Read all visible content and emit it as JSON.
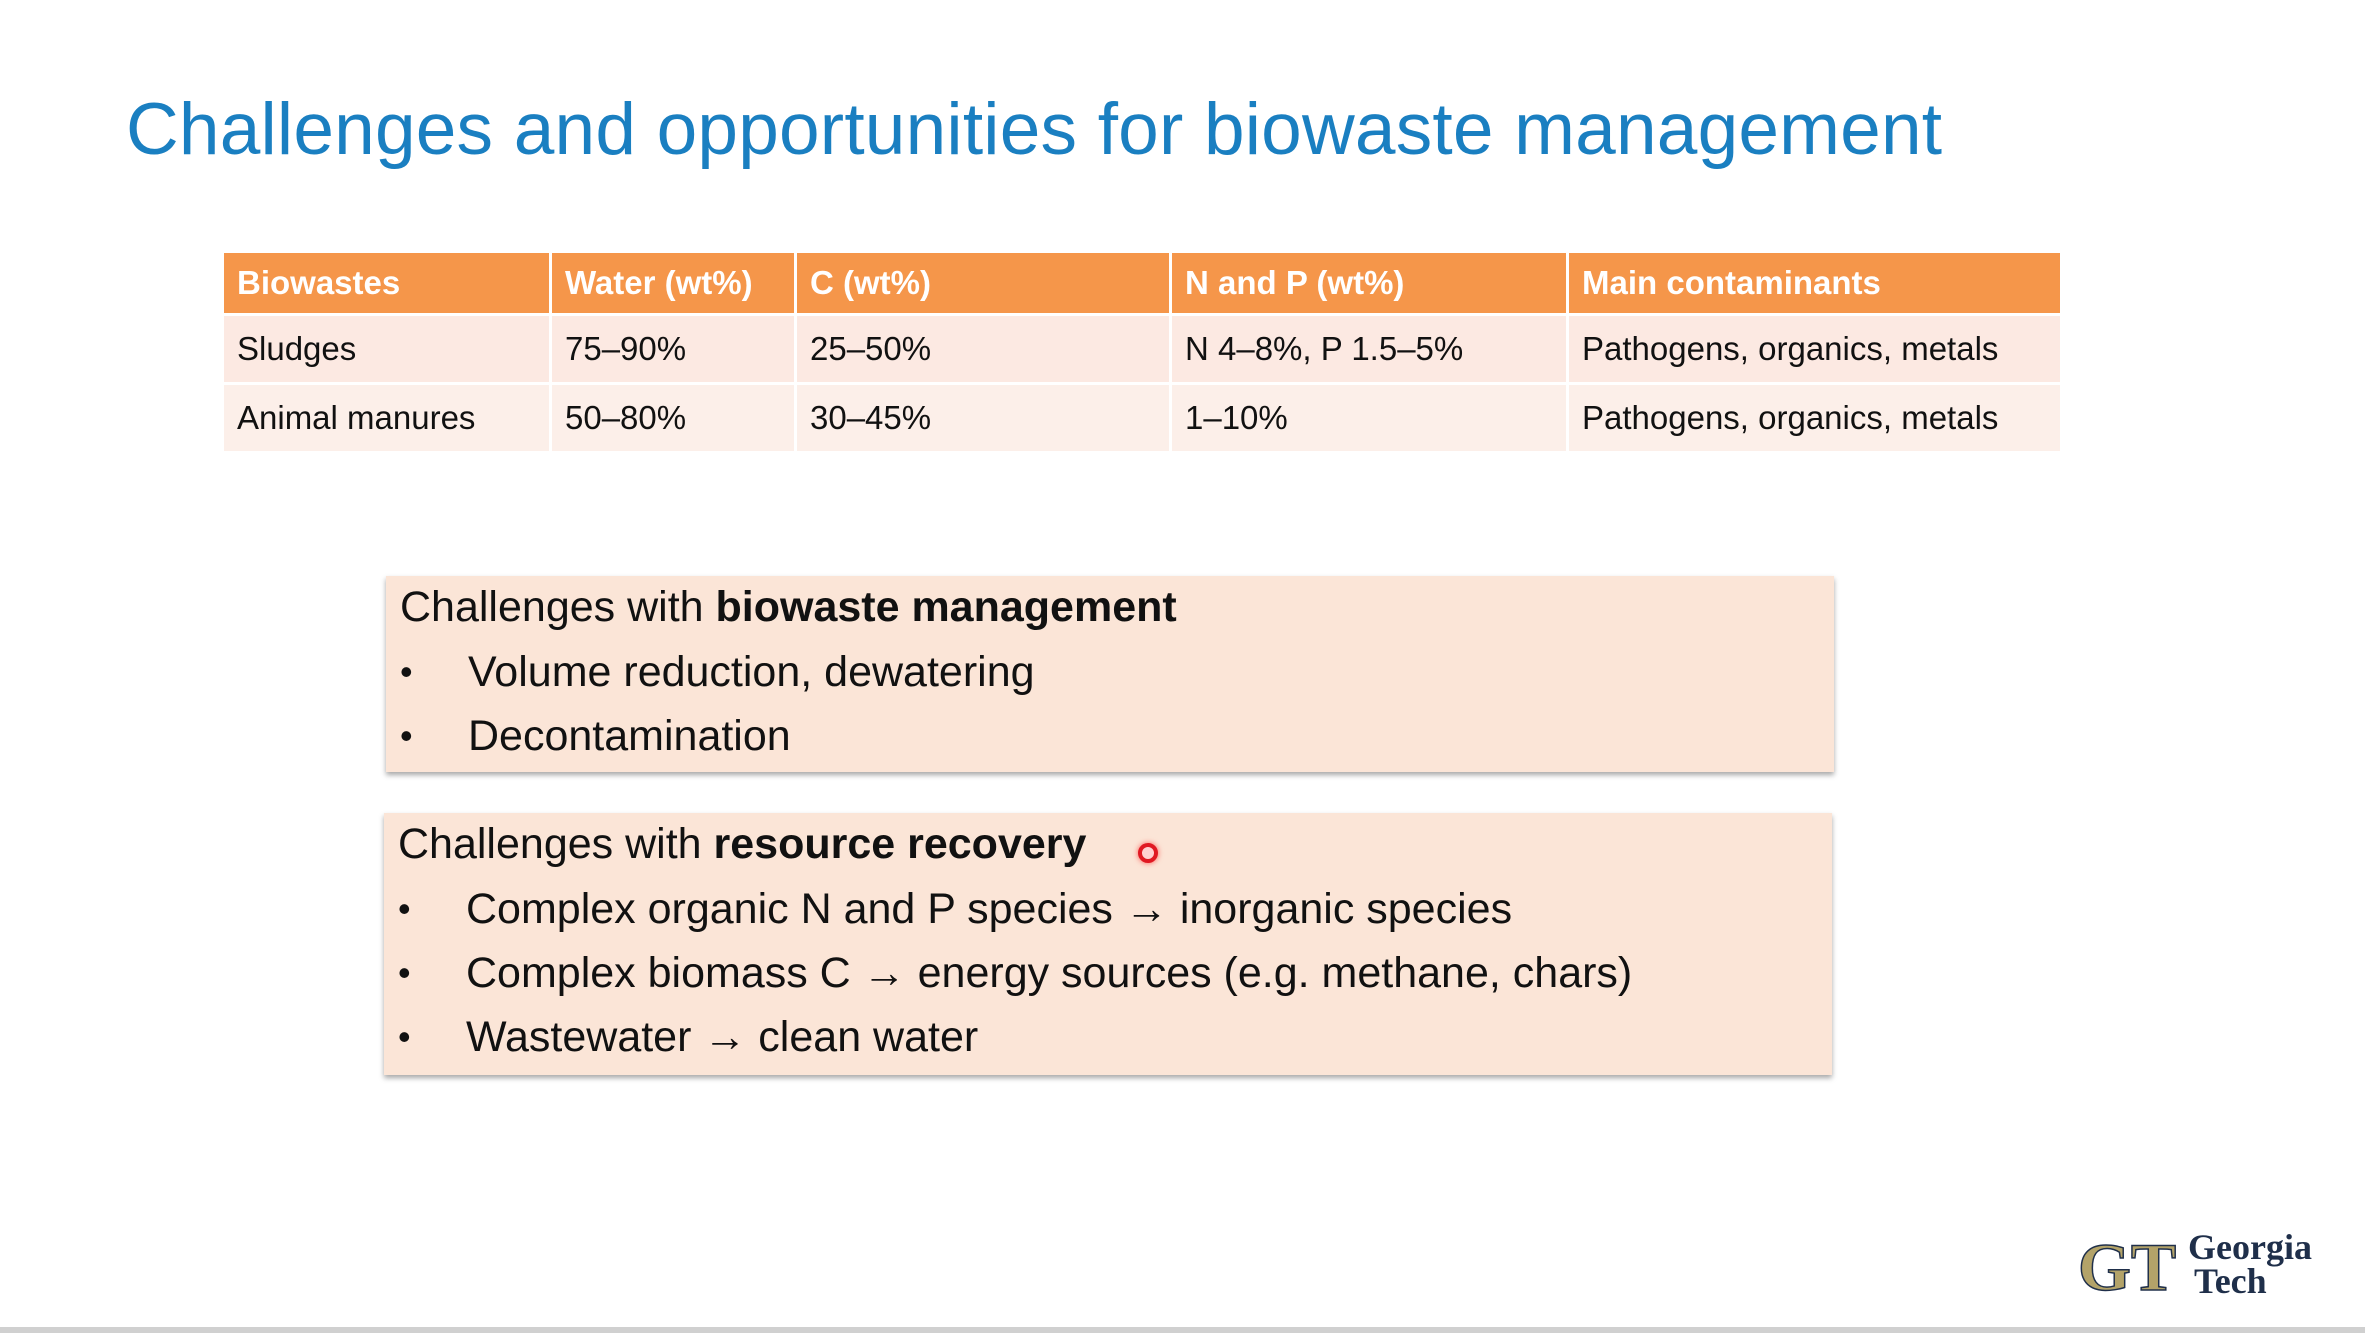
{
  "slide": {
    "title": "Challenges and opportunities for biowaste management"
  },
  "table": {
    "headers": [
      "Biowastes",
      "Water (wt%)",
      "C (wt%)",
      "N and P (wt%)",
      "Main contaminants"
    ],
    "rows": [
      [
        "Sludges",
        "75–90%",
        "25–50%",
        "N 4–8%, P 1.5–5%",
        "Pathogens, organics, metals"
      ],
      [
        "Animal manures",
        "50–80%",
        "30–45%",
        "1–10%",
        "Pathogens, organics, metals"
      ]
    ]
  },
  "box1": {
    "title_prefix": "Challenges with ",
    "title_bold": "biowaste management",
    "bullets": [
      "Volume reduction, dewatering",
      "Decontamination"
    ]
  },
  "box2": {
    "title_prefix": "Challenges with ",
    "title_bold": "resource recovery",
    "bullets": [
      "Complex organic N and P species → inorganic species",
      "Complex biomass C → energy sources (e.g. methane, chars)",
      "Wastewater → clean water"
    ]
  },
  "bullet_char": "•",
  "logo": {
    "mark_text": "GT",
    "line1": "Georgia",
    "line2": "Tech"
  },
  "colors": {
    "title": "#1a7fc1",
    "table_header": "#f5964a",
    "table_row": "#fce9e2",
    "box_bg": "#fbe5d7",
    "logo_gold": "#b3a369",
    "logo_navy": "#1f2f4a"
  }
}
